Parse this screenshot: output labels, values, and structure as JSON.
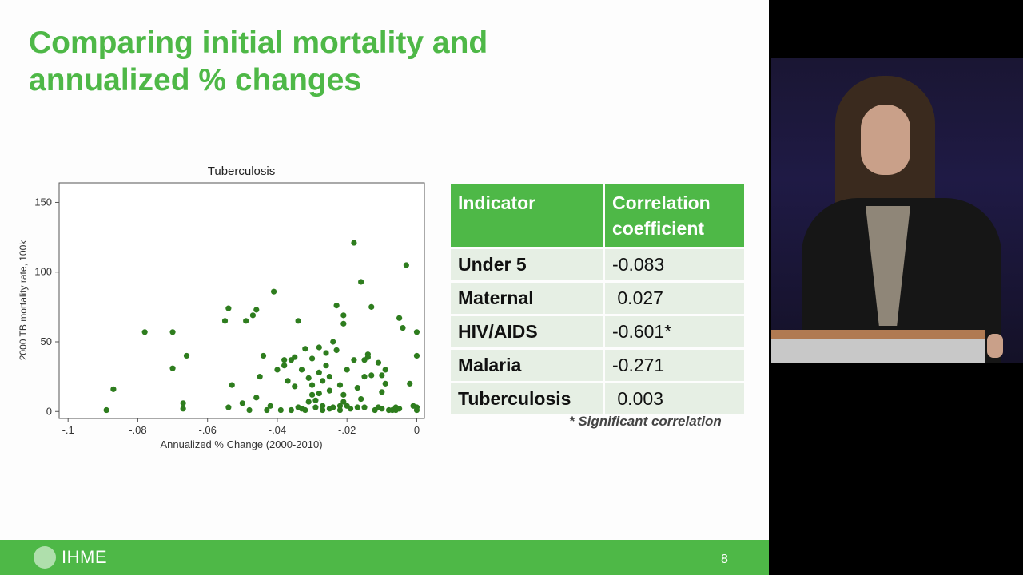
{
  "slide": {
    "title_line1": "Comparing initial mortality and",
    "title_line2": "annualized % changes",
    "page_number": "8",
    "logo_text": "IHME",
    "accent_color": "#4eb847"
  },
  "chart_data": {
    "type": "scatter",
    "title": "Tuberculosis",
    "xlabel": "Annualized % Change (2000-2010)",
    "ylabel": "2000 TB mortality rate, 100k",
    "xlim": [
      -0.1,
      0
    ],
    "ylim": [
      0,
      150
    ],
    "x_ticks": [
      -0.1,
      -0.08,
      -0.06,
      -0.04,
      -0.02,
      0
    ],
    "x_tick_labels": [
      "-.1",
      "-.08",
      "-.06",
      "-.04",
      "-.02",
      "0"
    ],
    "y_ticks": [
      0,
      50,
      100,
      150
    ],
    "y_tick_labels": [
      "0",
      "50",
      "100",
      "150"
    ],
    "grid": false,
    "marker_color": "#2e7d1e",
    "points": [
      {
        "x": -0.089,
        "y": 1
      },
      {
        "x": -0.087,
        "y": 16
      },
      {
        "x": -0.078,
        "y": 57
      },
      {
        "x": -0.07,
        "y": 57
      },
      {
        "x": -0.07,
        "y": 31
      },
      {
        "x": -0.067,
        "y": 6
      },
      {
        "x": -0.067,
        "y": 2
      },
      {
        "x": -0.066,
        "y": 40
      },
      {
        "x": -0.055,
        "y": 65
      },
      {
        "x": -0.054,
        "y": 74
      },
      {
        "x": -0.054,
        "y": 3
      },
      {
        "x": -0.053,
        "y": 19
      },
      {
        "x": -0.05,
        "y": 6
      },
      {
        "x": -0.049,
        "y": 65
      },
      {
        "x": -0.048,
        "y": 1
      },
      {
        "x": -0.047,
        "y": 69
      },
      {
        "x": -0.046,
        "y": 73
      },
      {
        "x": -0.046,
        "y": 10
      },
      {
        "x": -0.045,
        "y": 25
      },
      {
        "x": -0.044,
        "y": 40
      },
      {
        "x": -0.043,
        "y": 1
      },
      {
        "x": -0.042,
        "y": 4
      },
      {
        "x": -0.041,
        "y": 86
      },
      {
        "x": -0.04,
        "y": 30
      },
      {
        "x": -0.039,
        "y": 1
      },
      {
        "x": -0.038,
        "y": 37
      },
      {
        "x": -0.038,
        "y": 33
      },
      {
        "x": -0.037,
        "y": 22
      },
      {
        "x": -0.036,
        "y": 1
      },
      {
        "x": -0.036,
        "y": 37
      },
      {
        "x": -0.035,
        "y": 39
      },
      {
        "x": -0.035,
        "y": 18
      },
      {
        "x": -0.034,
        "y": 65
      },
      {
        "x": -0.034,
        "y": 3
      },
      {
        "x": -0.033,
        "y": 2
      },
      {
        "x": -0.033,
        "y": 30
      },
      {
        "x": -0.032,
        "y": 45
      },
      {
        "x": -0.032,
        "y": 1
      },
      {
        "x": -0.031,
        "y": 24
      },
      {
        "x": -0.031,
        "y": 7
      },
      {
        "x": -0.03,
        "y": 12
      },
      {
        "x": -0.03,
        "y": 38
      },
      {
        "x": -0.03,
        "y": 19
      },
      {
        "x": -0.029,
        "y": 3
      },
      {
        "x": -0.029,
        "y": 8
      },
      {
        "x": -0.028,
        "y": 46
      },
      {
        "x": -0.028,
        "y": 28
      },
      {
        "x": -0.028,
        "y": 13
      },
      {
        "x": -0.027,
        "y": 1
      },
      {
        "x": -0.027,
        "y": 22
      },
      {
        "x": -0.027,
        "y": 4
      },
      {
        "x": -0.026,
        "y": 42
      },
      {
        "x": -0.026,
        "y": 33
      },
      {
        "x": -0.025,
        "y": 2
      },
      {
        "x": -0.025,
        "y": 15
      },
      {
        "x": -0.025,
        "y": 25
      },
      {
        "x": -0.024,
        "y": 50
      },
      {
        "x": -0.024,
        "y": 3
      },
      {
        "x": -0.023,
        "y": 76
      },
      {
        "x": -0.023,
        "y": 44
      },
      {
        "x": -0.022,
        "y": 4
      },
      {
        "x": -0.022,
        "y": 19
      },
      {
        "x": -0.022,
        "y": 1
      },
      {
        "x": -0.021,
        "y": 63
      },
      {
        "x": -0.021,
        "y": 69
      },
      {
        "x": -0.021,
        "y": 12
      },
      {
        "x": -0.021,
        "y": 7
      },
      {
        "x": -0.02,
        "y": 30
      },
      {
        "x": -0.02,
        "y": 4
      },
      {
        "x": -0.019,
        "y": 2
      },
      {
        "x": -0.018,
        "y": 121
      },
      {
        "x": -0.018,
        "y": 37
      },
      {
        "x": -0.017,
        "y": 17
      },
      {
        "x": -0.017,
        "y": 3
      },
      {
        "x": -0.016,
        "y": 93
      },
      {
        "x": -0.016,
        "y": 9
      },
      {
        "x": -0.015,
        "y": 37
      },
      {
        "x": -0.015,
        "y": 25
      },
      {
        "x": -0.015,
        "y": 3
      },
      {
        "x": -0.014,
        "y": 41
      },
      {
        "x": -0.014,
        "y": 39
      },
      {
        "x": -0.013,
        "y": 75
      },
      {
        "x": -0.013,
        "y": 26
      },
      {
        "x": -0.012,
        "y": 1
      },
      {
        "x": -0.011,
        "y": 35
      },
      {
        "x": -0.011,
        "y": 3
      },
      {
        "x": -0.01,
        "y": 2
      },
      {
        "x": -0.01,
        "y": 26
      },
      {
        "x": -0.01,
        "y": 14
      },
      {
        "x": -0.009,
        "y": 30
      },
      {
        "x": -0.009,
        "y": 20
      },
      {
        "x": -0.008,
        "y": 1
      },
      {
        "x": -0.007,
        "y": 1
      },
      {
        "x": -0.006,
        "y": 1
      },
      {
        "x": -0.006,
        "y": 3
      },
      {
        "x": -0.005,
        "y": 67
      },
      {
        "x": -0.005,
        "y": 2
      },
      {
        "x": -0.004,
        "y": 60
      },
      {
        "x": -0.003,
        "y": 105
      },
      {
        "x": -0.002,
        "y": 20
      },
      {
        "x": -0.001,
        "y": 4
      },
      {
        "x": 0.0,
        "y": 57
      },
      {
        "x": 0.0,
        "y": 40
      },
      {
        "x": 0.0,
        "y": 1
      },
      {
        "x": 0.0,
        "y": 3
      }
    ]
  },
  "table": {
    "header_indicator": "Indicator",
    "header_correlation": "Correlation coefficient",
    "rows": [
      {
        "indicator": "Under 5",
        "value": "-0.083"
      },
      {
        "indicator": "Maternal",
        "value": " 0.027"
      },
      {
        "indicator": "HIV/AIDS",
        "value": "-0.601*"
      },
      {
        "indicator": "Malaria",
        "value": "-0.271"
      },
      {
        "indicator": "Tuberculosis",
        "value": " 0.003"
      }
    ],
    "footnote": "* Significant correlation"
  }
}
